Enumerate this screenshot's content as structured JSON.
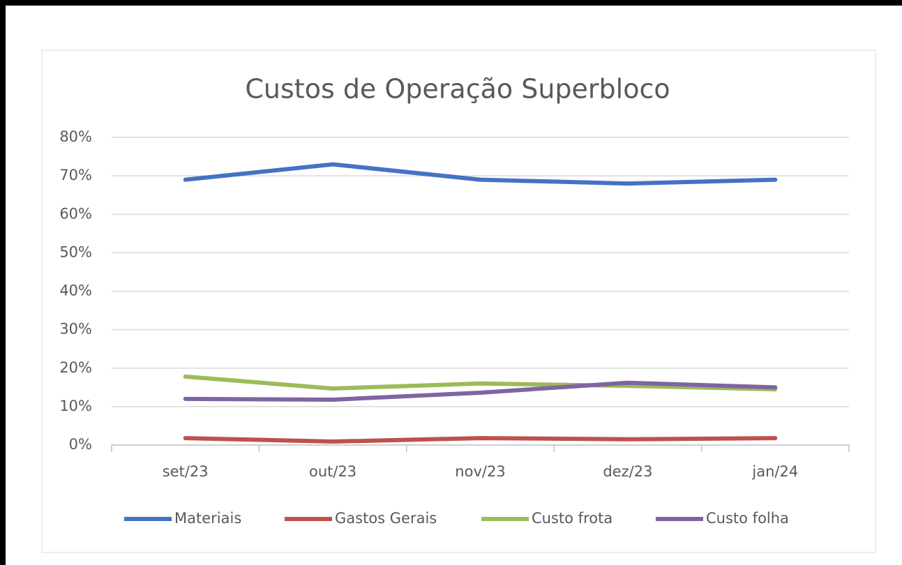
{
  "chart_data": {
    "type": "line",
    "title": "Custos de Operação Superbloco",
    "categories": [
      "set/23",
      "out/23",
      "nov/23",
      "dez/23",
      "jan/24"
    ],
    "series": [
      {
        "name": "Materiais",
        "color": "#4472c4",
        "values": [
          69,
          73,
          69,
          68,
          69
        ]
      },
      {
        "name": "Gastos Gerais",
        "color": "#c0504d",
        "values": [
          1.8,
          0.9,
          1.8,
          1.5,
          1.8
        ]
      },
      {
        "name": "Custo frota",
        "color": "#9bbb59",
        "values": [
          17.8,
          14.7,
          16,
          15.4,
          14.5
        ]
      },
      {
        "name": "Custo folha",
        "color": "#8064a2",
        "values": [
          12,
          11.8,
          13.6,
          16.2,
          15
        ]
      }
    ],
    "ylim": [
      0,
      80
    ],
    "yticks": [
      {
        "value": 0,
        "label": "0%"
      },
      {
        "value": 10,
        "label": "10%"
      },
      {
        "value": 20,
        "label": "20%"
      },
      {
        "value": 30,
        "label": "30%"
      },
      {
        "value": 40,
        "label": "40%"
      },
      {
        "value": 50,
        "label": "50%"
      },
      {
        "value": 60,
        "label": "60%"
      },
      {
        "value": 70,
        "label": "70%"
      },
      {
        "value": 80,
        "label": "80%"
      }
    ],
    "grid": true,
    "legend": "bottom"
  }
}
